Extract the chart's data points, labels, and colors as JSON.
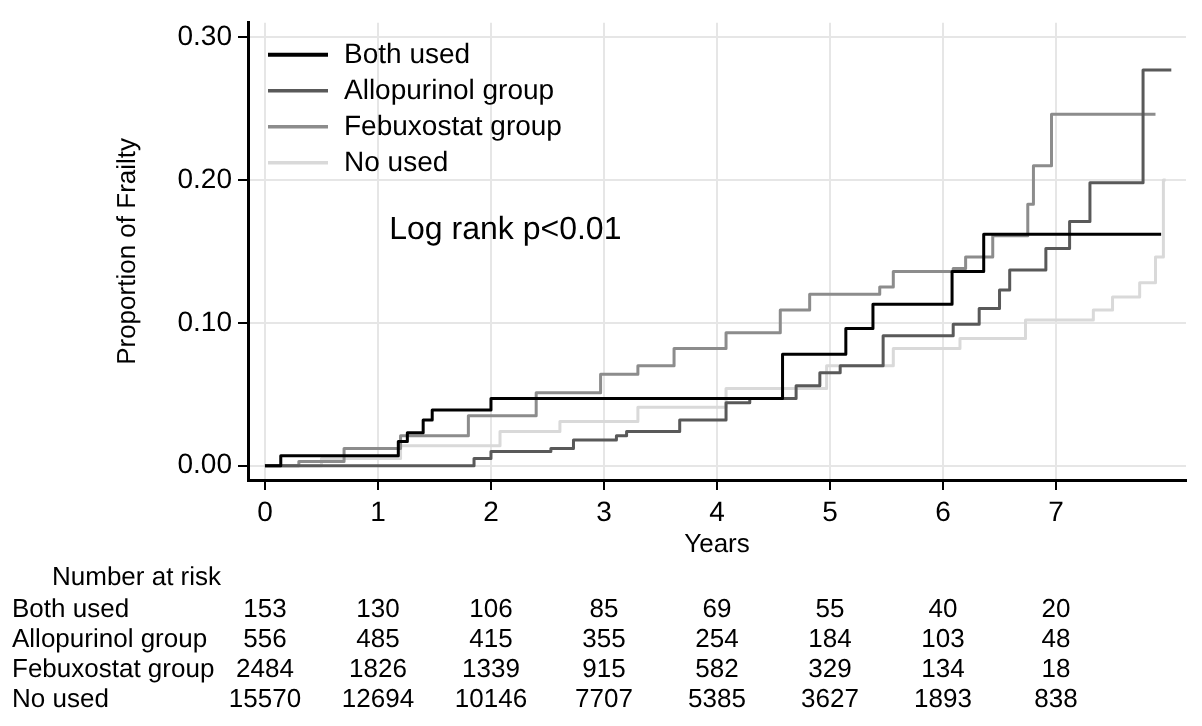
{
  "chart_data": {
    "type": "step",
    "xlabel": "Years",
    "ylabel": "Proportion of Frailty",
    "xlim": [
      -0.15,
      8.15
    ],
    "xticks": [
      0,
      1,
      2,
      3,
      4,
      5,
      6,
      7
    ],
    "ylim": [
      -0.01,
      0.31
    ],
    "yticks": [
      {
        "value": 0,
        "label": "0.00"
      },
      {
        "value": 0.1,
        "label": "0.10"
      },
      {
        "value": 0.2,
        "label": "0.20"
      },
      {
        "value": 0.3,
        "label": "0.30"
      }
    ],
    "grid": true,
    "legend": "top left",
    "marker": "none",
    "line_style": "solid",
    "series": [
      {
        "name": "Both used",
        "color": "#000000",
        "x": [
          0,
          0.14,
          1.18,
          1.26,
          1.4,
          1.48,
          2.0,
          4.58,
          5.14,
          5.38,
          6.08,
          6.36,
          7.93
        ],
        "values": [
          0,
          0.007,
          0.017,
          0.023,
          0.032,
          0.039,
          0.047,
          0.078,
          0.096,
          0.113,
          0.136,
          0.162,
          0.162
        ]
      },
      {
        "name": "Allopurinol group",
        "color": "#595959",
        "x": [
          0,
          1.85,
          2.0,
          2.53,
          2.73,
          3.11,
          3.2,
          3.67,
          4.08,
          4.29,
          4.7,
          4.91,
          5.09,
          5.47,
          6.09,
          6.32,
          6.5,
          6.59,
          6.91,
          7.12,
          7.3,
          7.77,
          8.02
        ],
        "values": [
          0,
          0.005,
          0.01,
          0.012,
          0.018,
          0.021,
          0.024,
          0.032,
          0.044,
          0.047,
          0.056,
          0.065,
          0.07,
          0.091,
          0.099,
          0.11,
          0.123,
          0.137,
          0.152,
          0.171,
          0.198,
          0.277,
          0.277
        ]
      },
      {
        "name": "Febuxostat group",
        "color": "#8c8c8c",
        "x": [
          0,
          0.3,
          0.7,
          1.2,
          1.8,
          2.4,
          2.97,
          3.3,
          3.62,
          4.08,
          4.56,
          4.82,
          5.44,
          5.56,
          6.09,
          6.2,
          6.44,
          6.73,
          6.75,
          6.8,
          6.96,
          7.88
        ],
        "values": [
          0,
          0.003,
          0.012,
          0.021,
          0.035,
          0.051,
          0.064,
          0.07,
          0.082,
          0.093,
          0.109,
          0.12,
          0.125,
          0.136,
          0.138,
          0.146,
          0.161,
          0.161,
          0.183,
          0.21,
          0.246,
          0.246
        ]
      },
      {
        "name": "No used",
        "color": "#d9d9d9",
        "x": [
          0,
          0.5,
          1.2,
          2.08,
          2.61,
          3.3,
          4.08,
          4.97,
          5.56,
          6.15,
          6.73,
          7.33,
          7.5,
          7.74,
          7.88,
          7.95,
          7.97
        ],
        "values": [
          0,
          0.005,
          0.014,
          0.024,
          0.031,
          0.041,
          0.054,
          0.07,
          0.082,
          0.089,
          0.102,
          0.109,
          0.118,
          0.128,
          0.146,
          0.2,
          0.2
        ]
      }
    ],
    "annotations": [
      "Log rank p<0.01",
      "Number at risk",
      "Both used",
      "153",
      "130",
      "106",
      "85",
      "69",
      "55",
      "40",
      "20",
      "Allopurinol group",
      "556",
      "485",
      "415",
      "355",
      "254",
      "184",
      "103",
      "48",
      "Febuxostat group",
      "2484",
      "1826",
      "1339",
      "915",
      "582",
      "329",
      "134",
      "18",
      "No used",
      "15570",
      "12694",
      "10146",
      "7707",
      "5385",
      "3627",
      "1893",
      "838"
    ]
  }
}
